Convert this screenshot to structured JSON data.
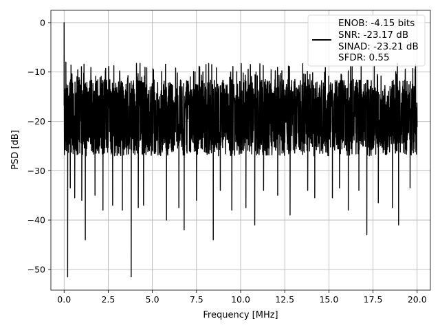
{
  "chart_data": {
    "type": "line",
    "title": "",
    "xlabel": "Frequency [MHz]",
    "ylabel": "PSD [dB]",
    "xlim": [
      -0.75,
      20.75
    ],
    "ylim": [
      -54.2,
      2.5
    ],
    "xticks": [
      0.0,
      2.5,
      5.0,
      7.5,
      10.0,
      12.5,
      15.0,
      17.5,
      20.0
    ],
    "xtick_labels": [
      "0.0",
      "2.5",
      "5.0",
      "7.5",
      "10.0",
      "12.5",
      "15.0",
      "17.5",
      "20.0"
    ],
    "yticks": [
      0,
      -10,
      -20,
      -30,
      -40,
      -50
    ],
    "ytick_labels": [
      "0",
      "−10",
      "−20",
      "−30",
      "−40",
      "−50"
    ],
    "grid": true,
    "legend_position": "top-right",
    "legend_lines": [
      "ENOB: -4.15 bits",
      "SNR: -23.17 dB",
      "SINAD: -23.21 dB",
      "SFDR: 0.55"
    ],
    "series_color": "#000000",
    "series": [
      {
        "name": "ENOB: -4.15 bits",
        "noise_band": {
          "x_start": 0.0,
          "x_end": 20.0,
          "upper_envelope_db": -10,
          "median_db": -18,
          "typical_lower_db": -27
        },
        "peaks": [
          {
            "x": 0.0,
            "y": 0.0
          },
          {
            "x": 0.1,
            "y": -8
          }
        ],
        "notable_dips": [
          {
            "x": 0.08,
            "y": -22
          },
          {
            "x": 0.2,
            "y": -51.5
          },
          {
            "x": 0.35,
            "y": -33.5
          },
          {
            "x": 0.6,
            "y": -35.5
          },
          {
            "x": 1.0,
            "y": -36
          },
          {
            "x": 1.2,
            "y": -44
          },
          {
            "x": 1.75,
            "y": -35
          },
          {
            "x": 2.2,
            "y": -38
          },
          {
            "x": 2.75,
            "y": -37
          },
          {
            "x": 3.3,
            "y": -38
          },
          {
            "x": 3.8,
            "y": -51.5
          },
          {
            "x": 4.2,
            "y": -37.5
          },
          {
            "x": 4.5,
            "y": -37
          },
          {
            "x": 5.8,
            "y": -40
          },
          {
            "x": 6.5,
            "y": -37.5
          },
          {
            "x": 6.8,
            "y": -42
          },
          {
            "x": 7.5,
            "y": -36
          },
          {
            "x": 8.45,
            "y": -44
          },
          {
            "x": 8.85,
            "y": -34
          },
          {
            "x": 9.5,
            "y": -38
          },
          {
            "x": 10.3,
            "y": -37.5
          },
          {
            "x": 10.8,
            "y": -41
          },
          {
            "x": 11.3,
            "y": -34
          },
          {
            "x": 12.1,
            "y": -35
          },
          {
            "x": 12.8,
            "y": -39
          },
          {
            "x": 13.8,
            "y": -34
          },
          {
            "x": 14.2,
            "y": -35.5
          },
          {
            "x": 15.2,
            "y": -35.5
          },
          {
            "x": 15.6,
            "y": -33.5
          },
          {
            "x": 16.1,
            "y": -38
          },
          {
            "x": 16.7,
            "y": -34
          },
          {
            "x": 17.15,
            "y": -43
          },
          {
            "x": 17.8,
            "y": -36.5
          },
          {
            "x": 18.6,
            "y": -37.5
          },
          {
            "x": 18.95,
            "y": -41
          },
          {
            "x": 19.6,
            "y": -33.5
          },
          {
            "x": 20.0,
            "y": -20
          }
        ]
      }
    ]
  }
}
